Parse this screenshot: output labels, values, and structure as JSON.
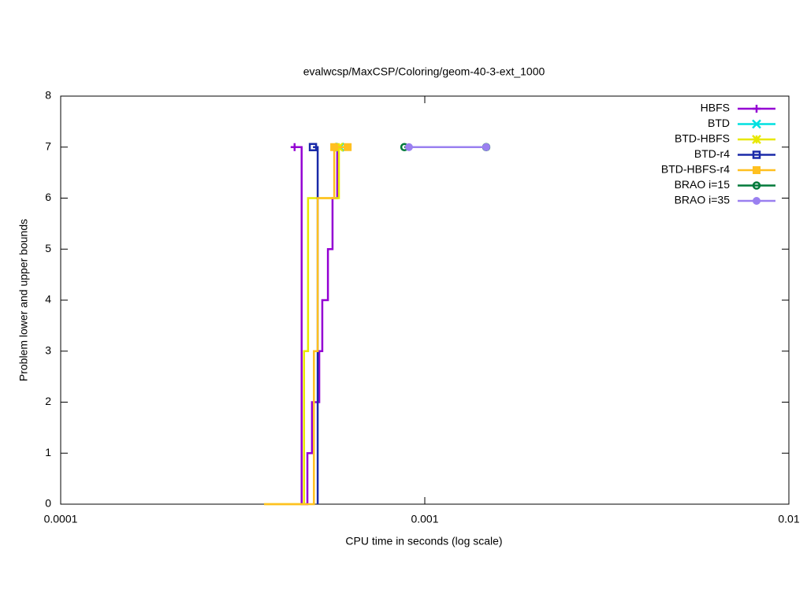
{
  "chart_data": {
    "type": "step",
    "title": "evalwcsp/MaxCSP/Coloring/geom-40-3-ext_1000",
    "x_label": "CPU time in seconds (log scale)",
    "y_label": "Problem lower and upper bounds",
    "xscale": "log",
    "xlim": [
      0.0001,
      0.01
    ],
    "xticks": [
      0.0001,
      0.001,
      0.01
    ],
    "ylim": [
      0,
      8
    ],
    "yticks": [
      0,
      1,
      2,
      3,
      4,
      5,
      6,
      7,
      8
    ],
    "legend": "top-right",
    "series": [
      {
        "name": "HBFS",
        "color": "#9400d3",
        "marker": "plus",
        "x": [
          0.000439,
          0.000459,
          0.000476,
          0.00049,
          0.000513,
          0.000523,
          0.000542,
          0.000558,
          0.000575
        ],
        "values": [
          7,
          0,
          1,
          2,
          3,
          4,
          5,
          6,
          7
        ]
      },
      {
        "name": "BTD",
        "color": "#00e0e0",
        "marker": "cross",
        "x": [
          0.000585
        ],
        "values": [
          7
        ]
      },
      {
        "name": "BTD-HBFS",
        "color": "#e8e800",
        "marker": "star",
        "x": [
          0.000362,
          0.000466,
          0.000478,
          0.000531,
          0.000581
        ],
        "values": [
          0,
          3,
          6,
          6,
          7
        ]
      },
      {
        "name": "BTD-r4",
        "color": "#1a2aa8",
        "marker": "square-open",
        "x": [
          0.000493,
          0.000508
        ],
        "values": [
          7,
          0
        ]
      },
      {
        "name": "BTD-HBFS-r4",
        "color": "#ffc020",
        "marker": "square",
        "x": [
          0.000362,
          0.000496,
          0.000508,
          0.000564,
          0.000614
        ],
        "values": [
          0,
          3,
          6,
          7,
          7
        ]
      },
      {
        "name": "BRAO i=15",
        "color": "#007a3a",
        "marker": "circle-open",
        "x": [
          0.000879,
          0.001475
        ],
        "values": [
          7,
          7
        ]
      },
      {
        "name": "BRAO i=35",
        "color": "#9a80f0",
        "marker": "circle",
        "x": [
          0.000905,
          0.001475
        ],
        "values": [
          7,
          7
        ]
      }
    ]
  }
}
